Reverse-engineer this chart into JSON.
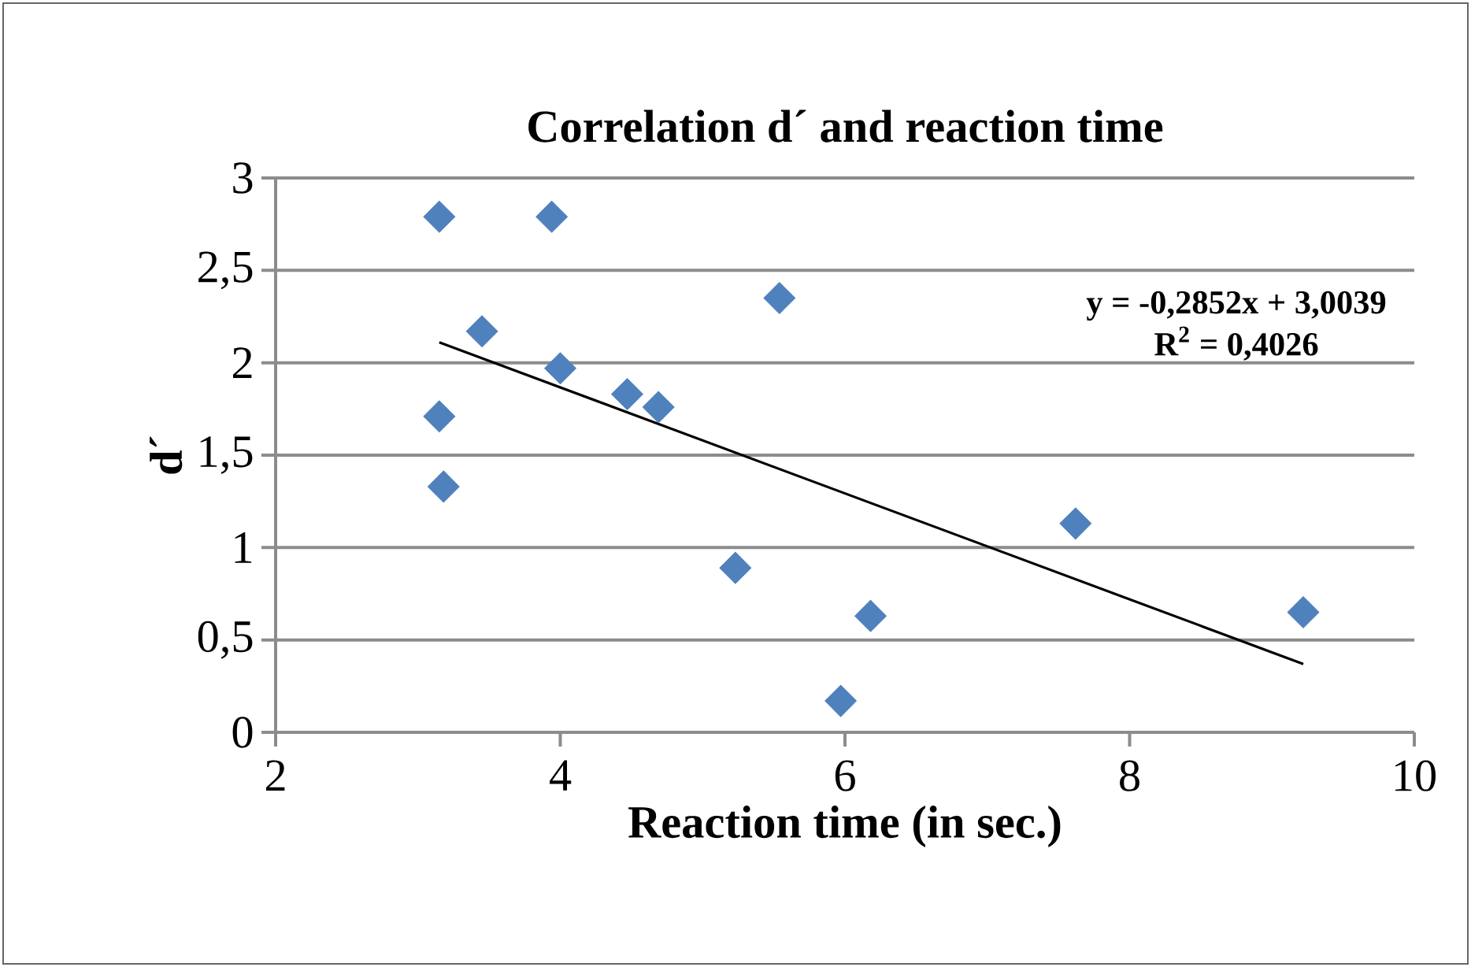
{
  "chart_data": {
    "type": "scatter",
    "title": "Correlation d´ and reaction time",
    "xlabel": "Reaction time (in sec.)",
    "ylabel": "d´",
    "xlim": [
      2,
      10
    ],
    "xticks": [
      2,
      4,
      6,
      8,
      10
    ],
    "ylim": [
      0,
      3
    ],
    "yticks": [
      0,
      {
        "value": 0.5,
        "label": "0,5"
      },
      1,
      {
        "value": 1.5,
        "label": "1,5"
      },
      2,
      {
        "value": 2.5,
        "label": "2,5"
      },
      3
    ],
    "grid": "y",
    "annotations": [
      "y = -0,2852x + 3,0039",
      "R$^{2}$ = 0,4026"
    ],
    "series": [
      {
        "marker": "diamond",
        "color": "#4f81bd",
        "x": [
          3.15,
          3.94,
          3.45,
          4.0,
          4.47,
          4.69,
          3.15,
          3.18,
          5.54,
          5.23,
          5.97,
          6.18,
          7.62,
          9.22
        ],
        "values": [
          2.79,
          2.79,
          2.17,
          1.97,
          1.83,
          1.76,
          1.71,
          1.33,
          2.35,
          0.89,
          0.17,
          0.63,
          1.13,
          0.65
        ]
      },
      {
        "type": "line",
        "color": "#000000",
        "x": [
          3.15,
          9.22
        ],
        "values": [
          2.11,
          0.37
        ]
      }
    ]
  }
}
